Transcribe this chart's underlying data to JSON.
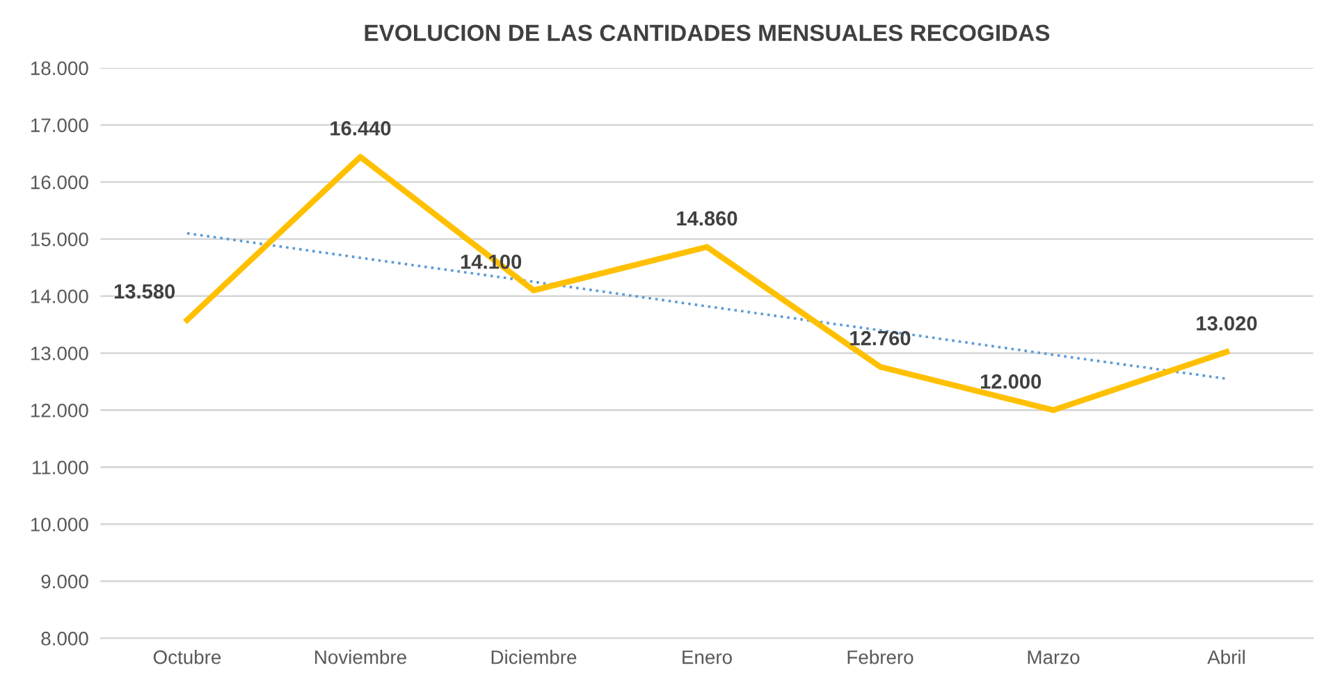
{
  "chart_data": {
    "type": "line",
    "title": "EVOLUCION DE LAS CANTIDADES MENSUALES RECOGIDAS",
    "categories": [
      "Octubre",
      "Noviembre",
      "Diciembre",
      "Enero",
      "Febrero",
      "Marzo",
      "Abril"
    ],
    "series": [
      {
        "color": "#ffc000",
        "values": [
          13580,
          16440,
          14100,
          14860,
          12760,
          12000,
          13020
        ],
        "value_labels": [
          "13.580",
          "16.440",
          "14.100",
          "14.860",
          "12.760",
          "12.000",
          "13.020"
        ]
      },
      {
        "type": "line",
        "color": "#5b9bd5",
        "line_style": "dotted",
        "values": [
          15100,
          14670,
          14250,
          13820,
          13400,
          12970,
          12550
        ]
      }
    ],
    "ylim": [
      8000,
      18000
    ],
    "yticks": [
      {
        "value": 8000,
        "label": "8.000"
      },
      {
        "value": 9000,
        "label": "9.000"
      },
      {
        "value": 10000,
        "label": "10.000"
      },
      {
        "value": 11000,
        "label": "11.000"
      },
      {
        "value": 12000,
        "label": "12.000"
      },
      {
        "value": 13000,
        "label": "13.000"
      },
      {
        "value": 14000,
        "label": "14.000"
      },
      {
        "value": 15000,
        "label": "15.000"
      },
      {
        "value": 16000,
        "label": "16.000"
      },
      {
        "value": 17000,
        "label": "17.000"
      },
      {
        "value": 18000,
        "label": "18.000"
      }
    ],
    "grid": "y",
    "marker": "none",
    "line_style": "solid"
  }
}
